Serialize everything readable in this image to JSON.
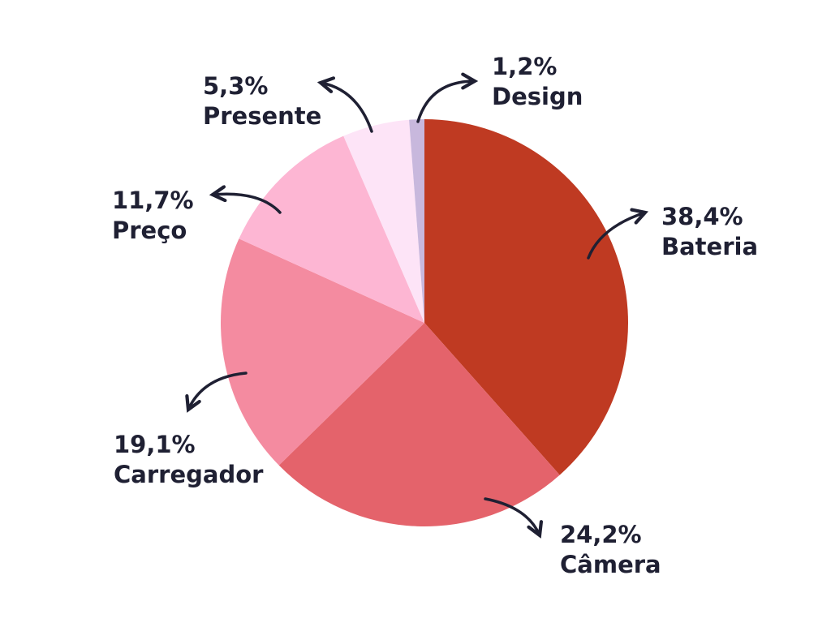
{
  "chart_data": {
    "type": "pie",
    "categories": [
      "Bateria",
      "Câmera",
      "Carregador",
      "Preço",
      "Presente",
      "Design"
    ],
    "values": [
      38.4,
      24.2,
      19.1,
      11.7,
      5.3,
      1.2
    ],
    "value_labels": [
      "38,4%",
      "24,2%",
      "19,1%",
      "11,7%",
      "5,3%",
      "1,2%"
    ],
    "colors": [
      "#bf3a22",
      "#e4636b",
      "#f48ba0",
      "#fdb6d3",
      "#fde4f7",
      "#c8b8dd"
    ]
  }
}
